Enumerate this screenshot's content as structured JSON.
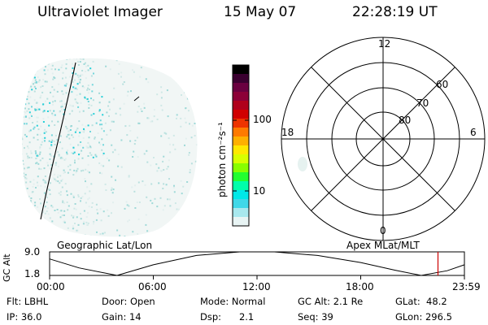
{
  "header": {
    "instrument": "Ultraviolet Imager",
    "date": "15 May 07",
    "time": "22:28:19 UT"
  },
  "imager_panel": {
    "caption": "Geographic Lat/Lon"
  },
  "colorbar": {
    "unit_label": "photon cm⁻²s⁻¹",
    "ticks": [
      "100",
      "10"
    ],
    "colors": [
      "#000000",
      "#3a0030",
      "#6a0040",
      "#8c0038",
      "#b0001c",
      "#d00000",
      "#ee3300",
      "#ff7a00",
      "#ffb000",
      "#ffe800",
      "#d8ff00",
      "#88ff00",
      "#22ff30",
      "#00ffaa",
      "#00e8e8",
      "#40d8e8",
      "#a8e8ee",
      "#e8f4f4"
    ]
  },
  "polar_plot": {
    "caption": "Apex MLat/MLT",
    "mlt_labels": {
      "top": "12",
      "left": "18",
      "right": "6",
      "bottom": "0"
    },
    "lat_labels": [
      "60",
      "70",
      "80"
    ]
  },
  "altitude_plot": {
    "ylabel": "GC Alt",
    "yticks": [
      "9.0",
      "1.8"
    ],
    "xticks": [
      "00:00",
      "06:00",
      "12:00",
      "18:00",
      "23:59"
    ],
    "current_time_hours": 22.47,
    "marker_color": "#cc0000"
  },
  "footer": {
    "col1": {
      "row1": "Flt: LBHL",
      "row2": "IP: 36.0"
    },
    "col2": {
      "row1": "Door: Open",
      "row2": "Gain: 14"
    },
    "col3": {
      "row1": "Mode: Normal",
      "row2": "Dsp:      2.1"
    },
    "col4": {
      "row1": "GC Alt: 2.1 Re",
      "row2": "Seq: 39"
    },
    "col5": {
      "row1": "GLat:  48.2",
      "row2": "GLon: 296.5"
    }
  }
}
